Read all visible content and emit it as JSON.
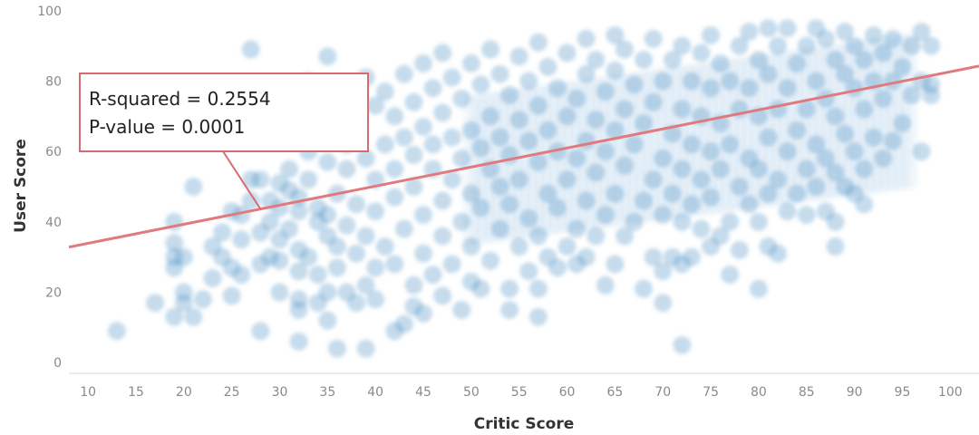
{
  "chart_data": {
    "type": "scatter",
    "xlabel": "Critic Score",
    "ylabel": "User Score",
    "xlim": [
      8,
      103
    ],
    "ylim": [
      -2,
      102
    ],
    "x_ticks": [
      10,
      15,
      20,
      25,
      30,
      35,
      40,
      45,
      50,
      55,
      60,
      65,
      70,
      75,
      80,
      85,
      90,
      95,
      100
    ],
    "y_ticks": [
      0,
      20,
      40,
      60,
      80,
      100
    ],
    "grid": false,
    "point_color": "#4a90c4",
    "trend_color": "#e07a7e",
    "trendline": {
      "slope": 0.5415,
      "intercept": 28.5
    },
    "annotation": {
      "lines": [
        "R-squared = 0.2554",
        "P-value = 0.0001"
      ]
    },
    "points": [
      [
        13,
        9
      ],
      [
        17,
        17
      ],
      [
        19,
        13
      ],
      [
        19,
        40
      ],
      [
        19,
        34
      ],
      [
        19,
        30
      ],
      [
        19,
        27
      ],
      [
        20,
        30
      ],
      [
        20,
        20
      ],
      [
        20,
        17
      ],
      [
        21,
        13
      ],
      [
        21,
        50
      ],
      [
        22,
        18
      ],
      [
        23,
        24
      ],
      [
        23,
        33
      ],
      [
        24,
        30
      ],
      [
        24,
        37
      ],
      [
        25,
        43
      ],
      [
        25,
        19
      ],
      [
        25,
        27
      ],
      [
        26,
        25
      ],
      [
        26,
        35
      ],
      [
        26,
        42
      ],
      [
        27,
        89
      ],
      [
        27,
        46
      ],
      [
        27,
        52
      ],
      [
        28,
        9
      ],
      [
        28,
        28
      ],
      [
        28,
        37
      ],
      [
        28,
        52
      ],
      [
        29,
        30
      ],
      [
        29,
        40
      ],
      [
        29,
        46
      ],
      [
        30,
        20
      ],
      [
        30,
        29
      ],
      [
        30,
        35
      ],
      [
        30,
        44
      ],
      [
        30,
        51
      ],
      [
        31,
        38
      ],
      [
        31,
        49
      ],
      [
        31,
        55
      ],
      [
        32,
        6
      ],
      [
        32,
        15
      ],
      [
        32,
        18
      ],
      [
        32,
        26
      ],
      [
        32,
        32
      ],
      [
        32,
        43
      ],
      [
        32,
        47
      ],
      [
        33,
        30
      ],
      [
        33,
        52
      ],
      [
        33,
        60
      ],
      [
        33,
        80
      ],
      [
        34,
        17
      ],
      [
        34,
        25
      ],
      [
        34,
        40
      ],
      [
        34,
        44
      ],
      [
        34,
        68
      ],
      [
        35,
        87
      ],
      [
        35,
        12
      ],
      [
        35,
        20
      ],
      [
        35,
        36
      ],
      [
        35,
        42
      ],
      [
        35,
        57
      ],
      [
        35,
        73
      ],
      [
        36,
        4
      ],
      [
        36,
        27
      ],
      [
        36,
        33
      ],
      [
        36,
        48
      ],
      [
        37,
        20
      ],
      [
        37,
        39
      ],
      [
        37,
        55
      ],
      [
        37,
        62
      ],
      [
        37,
        78
      ],
      [
        38,
        17
      ],
      [
        38,
        31
      ],
      [
        38,
        45
      ],
      [
        38,
        67
      ],
      [
        39,
        4
      ],
      [
        39,
        22
      ],
      [
        39,
        36
      ],
      [
        39,
        58
      ],
      [
        39,
        81
      ],
      [
        40,
        18
      ],
      [
        40,
        27
      ],
      [
        40,
        43
      ],
      [
        40,
        52
      ],
      [
        40,
        73
      ],
      [
        41,
        33
      ],
      [
        41,
        62
      ],
      [
        41,
        77
      ],
      [
        42,
        9
      ],
      [
        42,
        28
      ],
      [
        42,
        47
      ],
      [
        42,
        55
      ],
      [
        42,
        70
      ],
      [
        43,
        11
      ],
      [
        43,
        38
      ],
      [
        43,
        64
      ],
      [
        43,
        82
      ],
      [
        44,
        16
      ],
      [
        44,
        22
      ],
      [
        44,
        50
      ],
      [
        44,
        59
      ],
      [
        44,
        74
      ],
      [
        45,
        14
      ],
      [
        45,
        31
      ],
      [
        45,
        42
      ],
      [
        45,
        67
      ],
      [
        45,
        85
      ],
      [
        46,
        25
      ],
      [
        46,
        55
      ],
      [
        46,
        62
      ],
      [
        46,
        78
      ],
      [
        47,
        19
      ],
      [
        47,
        36
      ],
      [
        47,
        46
      ],
      [
        47,
        71
      ],
      [
        47,
        88
      ],
      [
        48,
        28
      ],
      [
        48,
        52
      ],
      [
        48,
        64
      ],
      [
        48,
        81
      ],
      [
        49,
        15
      ],
      [
        49,
        40
      ],
      [
        49,
        58
      ],
      [
        49,
        75
      ],
      [
        50,
        23
      ],
      [
        50,
        33
      ],
      [
        50,
        48
      ],
      [
        50,
        66
      ],
      [
        50,
        85
      ],
      [
        51,
        21
      ],
      [
        51,
        44
      ],
      [
        51,
        61
      ],
      [
        51,
        79
      ],
      [
        52,
        29
      ],
      [
        52,
        55
      ],
      [
        52,
        70
      ],
      [
        52,
        89
      ],
      [
        53,
        38
      ],
      [
        53,
        50
      ],
      [
        53,
        64
      ],
      [
        53,
        82
      ],
      [
        54,
        15
      ],
      [
        54,
        21
      ],
      [
        54,
        45
      ],
      [
        54,
        59
      ],
      [
        54,
        76
      ],
      [
        55,
        33
      ],
      [
        55,
        52
      ],
      [
        55,
        69
      ],
      [
        55,
        87
      ],
      [
        56,
        26
      ],
      [
        56,
        41
      ],
      [
        56,
        63
      ],
      [
        56,
        80
      ],
      [
        57,
        13
      ],
      [
        57,
        21
      ],
      [
        57,
        36
      ],
      [
        57,
        57
      ],
      [
        57,
        73
      ],
      [
        57,
        91
      ],
      [
        58,
        30
      ],
      [
        58,
        48
      ],
      [
        58,
        66
      ],
      [
        58,
        84
      ],
      [
        59,
        27
      ],
      [
        59,
        44
      ],
      [
        59,
        60
      ],
      [
        59,
        78
      ],
      [
        60,
        33
      ],
      [
        60,
        52
      ],
      [
        60,
        70
      ],
      [
        60,
        88
      ],
      [
        61,
        28
      ],
      [
        61,
        38
      ],
      [
        61,
        58
      ],
      [
        61,
        75
      ],
      [
        62,
        30
      ],
      [
        62,
        46
      ],
      [
        62,
        63
      ],
      [
        62,
        82
      ],
      [
        62,
        92
      ],
      [
        63,
        36
      ],
      [
        63,
        54
      ],
      [
        63,
        69
      ],
      [
        63,
        86
      ],
      [
        64,
        22
      ],
      [
        64,
        42
      ],
      [
        64,
        60
      ],
      [
        64,
        77
      ],
      [
        65,
        28
      ],
      [
        65,
        48
      ],
      [
        65,
        66
      ],
      [
        65,
        83
      ],
      [
        65,
        93
      ],
      [
        66,
        36
      ],
      [
        66,
        56
      ],
      [
        66,
        72
      ],
      [
        66,
        89
      ],
      [
        67,
        40
      ],
      [
        67,
        62
      ],
      [
        67,
        79
      ],
      [
        68,
        21
      ],
      [
        68,
        46
      ],
      [
        68,
        68
      ],
      [
        68,
        86
      ],
      [
        69,
        30
      ],
      [
        69,
        52
      ],
      [
        69,
        74
      ],
      [
        69,
        92
      ],
      [
        70,
        17
      ],
      [
        70,
        26
      ],
      [
        70,
        42
      ],
      [
        70,
        58
      ],
      [
        70,
        80
      ],
      [
        71,
        30
      ],
      [
        71,
        48
      ],
      [
        71,
        65
      ],
      [
        71,
        86
      ],
      [
        72,
        5
      ],
      [
        72,
        28
      ],
      [
        72,
        40
      ],
      [
        72,
        55
      ],
      [
        72,
        72
      ],
      [
        72,
        90
      ],
      [
        73,
        30
      ],
      [
        73,
        45
      ],
      [
        73,
        62
      ],
      [
        73,
        80
      ],
      [
        74,
        38
      ],
      [
        74,
        52
      ],
      [
        74,
        70
      ],
      [
        74,
        88
      ],
      [
        75,
        33
      ],
      [
        75,
        47
      ],
      [
        75,
        60
      ],
      [
        75,
        78
      ],
      [
        75,
        93
      ],
      [
        76,
        36
      ],
      [
        76,
        55
      ],
      [
        76,
        68
      ],
      [
        76,
        85
      ],
      [
        77,
        25
      ],
      [
        77,
        40
      ],
      [
        77,
        62
      ],
      [
        77,
        80
      ],
      [
        78,
        32
      ],
      [
        78,
        50
      ],
      [
        78,
        72
      ],
      [
        78,
        90
      ],
      [
        79,
        45
      ],
      [
        79,
        58
      ],
      [
        79,
        78
      ],
      [
        79,
        94
      ],
      [
        80,
        21
      ],
      [
        80,
        40
      ],
      [
        80,
        55
      ],
      [
        80,
        70
      ],
      [
        80,
        86
      ],
      [
        81,
        33
      ],
      [
        81,
        48
      ],
      [
        81,
        64
      ],
      [
        81,
        82
      ],
      [
        81,
        95
      ],
      [
        82,
        31
      ],
      [
        82,
        52
      ],
      [
        82,
        72
      ],
      [
        82,
        90
      ],
      [
        83,
        43
      ],
      [
        83,
        60
      ],
      [
        83,
        78
      ],
      [
        83,
        95
      ],
      [
        84,
        48
      ],
      [
        84,
        66
      ],
      [
        84,
        85
      ],
      [
        85,
        42
      ],
      [
        85,
        55
      ],
      [
        85,
        72
      ],
      [
        85,
        90
      ],
      [
        86,
        50
      ],
      [
        86,
        62
      ],
      [
        86,
        80
      ],
      [
        86,
        95
      ],
      [
        87,
        43
      ],
      [
        87,
        58
      ],
      [
        87,
        75
      ],
      [
        87,
        92
      ],
      [
        88,
        33
      ],
      [
        88,
        40
      ],
      [
        88,
        54
      ],
      [
        88,
        70
      ],
      [
        88,
        86
      ],
      [
        89,
        50
      ],
      [
        89,
        65
      ],
      [
        89,
        82
      ],
      [
        89,
        94
      ],
      [
        90,
        48
      ],
      [
        90,
        60
      ],
      [
        90,
        78
      ],
      [
        90,
        90
      ],
      [
        91,
        45
      ],
      [
        91,
        55
      ],
      [
        91,
        72
      ],
      [
        91,
        86
      ],
      [
        92,
        64
      ],
      [
        92,
        80
      ],
      [
        92,
        93
      ],
      [
        93,
        58
      ],
      [
        93,
        75
      ],
      [
        93,
        88
      ],
      [
        94,
        63
      ],
      [
        94,
        80
      ],
      [
        94,
        92
      ],
      [
        95,
        68
      ],
      [
        95,
        84
      ],
      [
        96,
        76
      ],
      [
        96,
        90
      ],
      [
        97,
        60
      ],
      [
        97,
        80
      ],
      [
        97,
        94
      ],
      [
        98,
        76
      ],
      [
        98,
        79
      ],
      [
        98,
        90
      ]
    ]
  }
}
